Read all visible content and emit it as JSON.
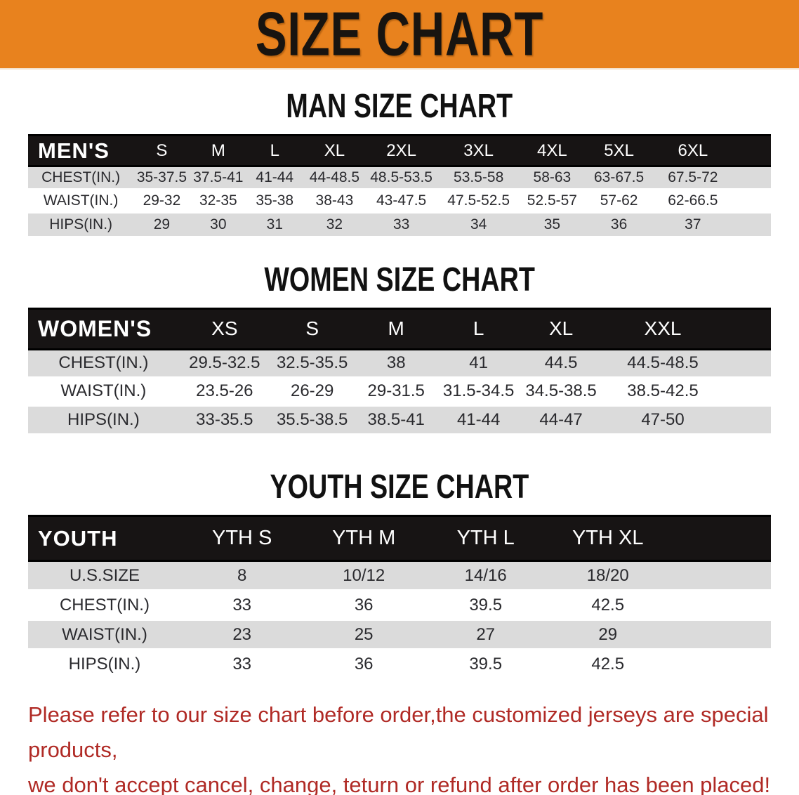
{
  "banner": {
    "title": "SIZE CHART",
    "bg_color": "#e8821e",
    "text_color": "#181410"
  },
  "colors": {
    "table_header_bg": "#171414",
    "table_header_text": "#ffffff",
    "row_shade": "#dbdbdb",
    "row_plain": "#ffffff",
    "disclaimer_red": "#b02a25"
  },
  "sections": [
    {
      "heading": "MAN SIZE CHART",
      "table": {
        "corner": "MEN'S",
        "sizes": [
          "S",
          "M",
          "L",
          "XL",
          "2XL",
          "3XL",
          "4XL",
          "5XL",
          "6XL"
        ],
        "rows": [
          {
            "label": "CHEST(IN.)",
            "values": [
              "35-37.5",
              "37.5-41",
              "41-44",
              "44-48.5",
              "48.5-53.5",
              "53.5-58",
              "58-63",
              "63-67.5",
              "67.5-72"
            ]
          },
          {
            "label": "WAIST(IN.)",
            "values": [
              "29-32",
              "32-35",
              "35-38",
              "38-43",
              "43-47.5",
              "47.5-52.5",
              "52.5-57",
              "57-62",
              "62-66.5"
            ]
          },
          {
            "label": "HIPS(IN.)",
            "values": [
              "29",
              "30",
              "31",
              "32",
              "33",
              "34",
              "35",
              "36",
              "37"
            ]
          }
        ]
      }
    },
    {
      "heading": "WOMEN SIZE CHART",
      "table": {
        "corner": "WOMEN'S",
        "sizes": [
          "XS",
          "S",
          "M",
          "L",
          "XL",
          "XXL"
        ],
        "rows": [
          {
            "label": "CHEST(IN.)",
            "values": [
              "29.5-32.5",
              "32.5-35.5",
              "38",
              "41",
              "44.5",
              "44.5-48.5"
            ]
          },
          {
            "label": "WAIST(IN.)",
            "values": [
              "23.5-26",
              "26-29",
              "29-31.5",
              "31.5-34.5",
              "34.5-38.5",
              "38.5-42.5"
            ]
          },
          {
            "label": "HIPS(IN.)",
            "values": [
              "33-35.5",
              "35.5-38.5",
              "38.5-41",
              "41-44",
              "44-47",
              "47-50"
            ]
          }
        ]
      }
    },
    {
      "heading": "YOUTH SIZE CHART",
      "table": {
        "corner": "YOUTH",
        "sizes": [
          "YTH S",
          "YTH M",
          "YTH L",
          "YTH XL"
        ],
        "rows": [
          {
            "label": "U.S.SIZE",
            "values": [
              "8",
              "10/12",
              "14/16",
              "18/20"
            ]
          },
          {
            "label": "CHEST(IN.)",
            "values": [
              "33",
              "36",
              "39.5",
              "42.5"
            ]
          },
          {
            "label": "WAIST(IN.)",
            "values": [
              "23",
              "25",
              "27",
              "29"
            ]
          },
          {
            "label": "HIPS(IN.)",
            "values": [
              "33",
              "36",
              "39.5",
              "42.5"
            ]
          }
        ]
      }
    }
  ],
  "disclaimer": {
    "line1": "Please refer to our size chart before order,the customized jerseys are special products,",
    "line2": "we don't accept cancel, change, teturn or refund after order has been placed!"
  }
}
